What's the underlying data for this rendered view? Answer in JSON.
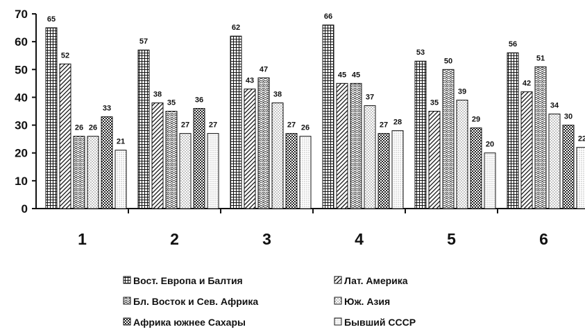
{
  "chart_data": {
    "type": "bar",
    "categories": [
      "1",
      "2",
      "3",
      "4",
      "5",
      "6"
    ],
    "series": [
      {
        "name": "Вост. Европа и Балтия",
        "values": [
          65,
          57,
          62,
          66,
          53,
          56
        ],
        "pattern": "grid"
      },
      {
        "name": "Лат. Америка",
        "values": [
          52,
          38,
          43,
          45,
          35,
          42
        ],
        "pattern": "diagonal"
      },
      {
        "name": "Бл. Восток и Сев. Африка",
        "values": [
          26,
          35,
          47,
          45,
          50,
          51
        ],
        "pattern": "wave"
      },
      {
        "name": "Юж. Азия",
        "values": [
          26,
          27,
          38,
          37,
          39,
          34
        ],
        "pattern": "dots"
      },
      {
        "name": "Африка южнее Сахары",
        "values": [
          33,
          36,
          27,
          27,
          29,
          30
        ],
        "pattern": "checker"
      },
      {
        "name": "Бывший СССР",
        "values": [
          21,
          27,
          26,
          28,
          20,
          22
        ],
        "pattern": "fine-dots"
      }
    ],
    "yticks": [
      "0",
      "10",
      "20",
      "30",
      "40",
      "50",
      "60",
      "70"
    ],
    "ylim": [
      0,
      70
    ],
    "grid": false,
    "legend_position": "bottom"
  }
}
